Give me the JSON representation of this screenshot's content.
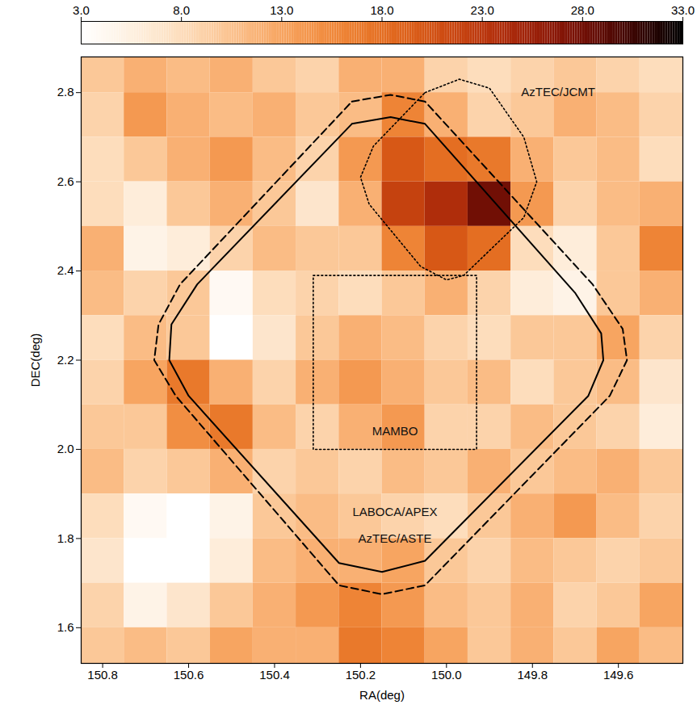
{
  "chart_data": {
    "type": "heatmap",
    "x_label": "RA(deg)",
    "y_label": "DEC(deg)",
    "xlim": [
      150.85,
      149.45
    ],
    "ylim": [
      1.52,
      2.88
    ],
    "xticks": [
      150.8,
      150.6,
      150.4,
      150.2,
      {
        "value": 150.0,
        "label": "150.0"
      },
      149.8,
      149.6
    ],
    "yticks": [
      1.6,
      1.8,
      {
        "value": 2.0,
        "label": "2.0"
      },
      2.2,
      2.4,
      2.6,
      2.8
    ],
    "grid": false,
    "cells": {
      "x": [
        150.8,
        150.7,
        150.6,
        150.5,
        150.4,
        150.3,
        150.2,
        150.1,
        150.0,
        149.9,
        149.8,
        149.7,
        149.6,
        149.5
      ],
      "y": [
        2.85,
        2.75,
        2.65,
        2.55,
        2.45,
        2.35,
        2.25,
        2.15,
        2.05,
        1.95,
        1.85,
        1.75,
        1.65,
        1.55
      ],
      "values": [
        [
          10,
          12,
          11,
          12,
          10,
          9,
          12,
          12,
          9,
          8,
          9,
          10,
          9,
          8
        ],
        [
          9,
          14,
          12,
          11,
          12,
          10,
          11,
          16,
          12,
          9,
          10,
          12,
          11,
          9
        ],
        [
          8,
          10,
          12,
          14,
          11,
          9,
          14,
          20,
          18,
          17,
          12,
          10,
          11,
          8
        ],
        [
          8,
          6,
          10,
          12,
          10,
          7,
          12,
          22,
          24,
          28,
          14,
          9,
          11,
          12
        ],
        [
          12,
          5,
          6,
          9,
          11,
          10,
          10,
          16,
          20,
          18,
          8,
          6,
          10,
          16
        ],
        [
          11,
          9,
          10,
          4,
          8,
          9,
          8,
          10,
          12,
          9,
          6,
          5,
          10,
          12
        ],
        [
          8,
          11,
          10,
          3,
          7,
          10,
          12,
          11,
          9,
          8,
          10,
          10,
          13,
          9
        ],
        [
          9,
          13,
          17,
          12,
          9,
          12,
          14,
          12,
          10,
          11,
          8,
          10,
          11,
          7
        ],
        [
          10,
          10,
          15,
          17,
          11,
          9,
          12,
          14,
          9,
          9,
          11,
          10,
          9,
          6
        ],
        [
          11,
          9,
          10,
          12,
          9,
          10,
          9,
          11,
          10,
          12,
          10,
          11,
          12,
          10
        ],
        [
          8,
          4,
          3,
          5,
          10,
          11,
          10,
          9,
          8,
          10,
          12,
          14,
          11,
          9
        ],
        [
          7,
          3,
          3,
          6,
          11,
          12,
          12,
          13,
          10,
          9,
          11,
          10,
          9,
          10
        ],
        [
          9,
          5,
          7,
          10,
          12,
          14,
          16,
          14,
          11,
          10,
          12,
          9,
          10,
          13
        ],
        [
          10,
          11,
          10,
          13,
          12,
          12,
          17,
          16,
          13,
          10,
          12,
          10,
          13,
          11
        ]
      ]
    },
    "colorbar": {
      "range": [
        3,
        33
      ],
      "ticks": [
        {
          "value": 3,
          "label": "3.0"
        },
        {
          "value": 8,
          "label": "8.0"
        },
        {
          "value": 13,
          "label": "13.0"
        },
        {
          "value": 18,
          "label": "18.0"
        },
        {
          "value": 23,
          "label": "23.0"
        },
        {
          "value": 28,
          "label": "28.0"
        },
        {
          "value": 33,
          "label": "33.0"
        }
      ]
    },
    "contours": [
      {
        "label": "LABOCA/APEX",
        "line_style": "solid",
        "label_at": [
          150.12,
          1.86
        ],
        "points": [
          [
            150.22,
            2.73
          ],
          [
            150.13,
            2.745
          ],
          [
            150.05,
            2.73
          ],
          [
            149.7,
            2.35
          ],
          [
            149.64,
            2.26
          ],
          [
            149.635,
            2.2
          ],
          [
            149.67,
            2.12
          ],
          [
            150.05,
            1.75
          ],
          [
            150.15,
            1.725
          ],
          [
            150.25,
            1.745
          ],
          [
            150.6,
            2.12
          ],
          [
            150.645,
            2.2
          ],
          [
            150.64,
            2.28
          ],
          [
            150.58,
            2.37
          ],
          [
            150.22,
            2.73
          ]
        ]
      },
      {
        "label": "AzTEC/ASTE",
        "line_style": "dashed",
        "label_at": [
          150.12,
          1.8
        ],
        "points": [
          [
            150.22,
            2.78
          ],
          [
            150.13,
            2.795
          ],
          [
            150.05,
            2.78
          ],
          [
            149.66,
            2.37
          ],
          [
            149.59,
            2.27
          ],
          [
            149.58,
            2.2
          ],
          [
            149.62,
            2.12
          ],
          [
            150.05,
            1.695
          ],
          [
            150.15,
            1.675
          ],
          [
            150.25,
            1.695
          ],
          [
            150.63,
            2.12
          ],
          [
            150.68,
            2.2
          ],
          [
            150.67,
            2.28
          ],
          [
            150.62,
            2.37
          ],
          [
            150.22,
            2.78
          ]
        ]
      },
      {
        "label": "AzTEC/JCMT",
        "line_style": "dotted",
        "label_at": [
          149.74,
          2.8
        ],
        "points": [
          [
            150.05,
            2.8
          ],
          [
            149.97,
            2.83
          ],
          [
            149.9,
            2.81
          ],
          [
            149.82,
            2.7
          ],
          [
            149.79,
            2.6
          ],
          [
            149.82,
            2.52
          ],
          [
            149.96,
            2.39
          ],
          [
            150.0,
            2.38
          ],
          [
            150.06,
            2.41
          ],
          [
            150.18,
            2.55
          ],
          [
            150.2,
            2.61
          ],
          [
            150.17,
            2.68
          ],
          [
            150.05,
            2.8
          ]
        ]
      },
      {
        "label": "MAMBO",
        "line_style": "dotted",
        "label_at": [
          150.12,
          2.04
        ],
        "points": [
          [
            150.31,
            2.39
          ],
          [
            149.93,
            2.39
          ],
          [
            149.93,
            2.0
          ],
          [
            150.31,
            2.0
          ],
          [
            150.31,
            2.39
          ]
        ]
      }
    ]
  }
}
